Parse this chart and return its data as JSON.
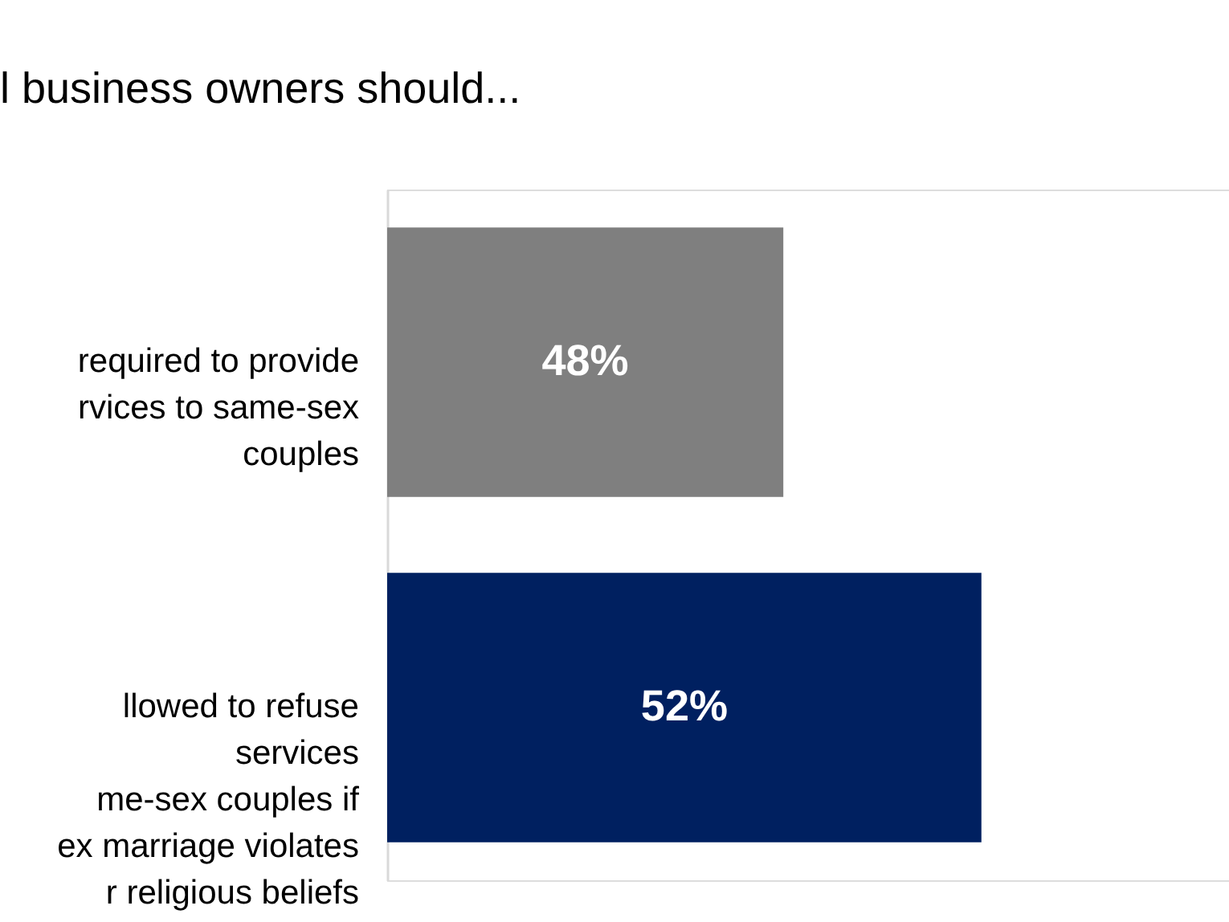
{
  "chart_data": {
    "type": "bar",
    "orientation": "horizontal",
    "title": "l business owners should...",
    "categories": [
      "required to provide\nrvices to same-sex\ncouples",
      "llowed to refuse\nservices\nme-sex couples if\nex marriage violates\nr religious beliefs"
    ],
    "values": [
      48,
      52
    ],
    "value_labels": [
      "48%",
      "52%"
    ],
    "colors": [
      "#7f7f7f",
      "#002060"
    ],
    "xlim": [
      40,
      57
    ],
    "tick_labels": "y",
    "grid": false,
    "legend": false
  }
}
